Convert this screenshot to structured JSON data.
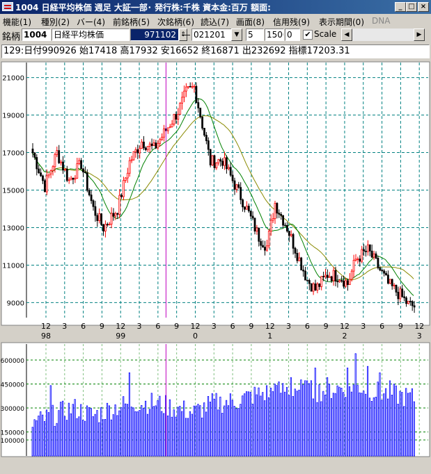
{
  "window": {
    "title": "1004 日経平均株価  週足  大証一部･  発行株:千株  資本金:百万  額面:",
    "btn_min": "_",
    "btn_max": "□",
    "btn_close": "×"
  },
  "menu": [
    "機能(1)",
    "種別(2)",
    "バー(4)",
    "前銘柄(5)",
    "次銘柄(6)",
    "読込(7)",
    "画面(8)",
    "信用残(9)",
    "表示期間(0)"
  ],
  "menu_disabled": "DNA",
  "toolbar": {
    "label": "銘柄",
    "code": "1004",
    "name": "日経平均株価",
    "date_from": "971102",
    "dash": "―",
    "date_to": "021201",
    "n1": "5",
    "n2": "1500",
    "n3": "0",
    "scale_label": "Scale",
    "scale_checked": true
  },
  "info": "129:日付990926 始17418 高17932 安16652 終16871 出232692 指標17203.31",
  "chart_data": {
    "type": "candlestick+bar",
    "price_axis": {
      "ticks": [
        21000,
        19000,
        17000,
        15000,
        13000,
        11000,
        9000
      ],
      "range": [
        8200,
        21800
      ]
    },
    "volume_axis": {
      "ticks": [
        600000,
        450000,
        300000,
        150000,
        100000
      ],
      "range": [
        0,
        700000
      ]
    },
    "x_month_labels": [
      "12",
      "3",
      "6",
      "9",
      "12",
      "3",
      "6",
      "9",
      "12",
      "3",
      "6",
      "9",
      "12",
      "3",
      "6",
      "9",
      "12",
      "3",
      "6",
      "9",
      "12"
    ],
    "x_year_labels": [
      "98",
      "99",
      "0",
      "1",
      "2",
      "3"
    ],
    "price_anchors": [
      [
        0,
        17000
      ],
      [
        6,
        15200
      ],
      [
        12,
        17000
      ],
      [
        18,
        15500
      ],
      [
        24,
        16400
      ],
      [
        30,
        14000
      ],
      [
        35,
        13000
      ],
      [
        42,
        14000
      ],
      [
        48,
        16500
      ],
      [
        54,
        17600
      ],
      [
        60,
        17200
      ],
      [
        66,
        18200
      ],
      [
        72,
        19200
      ],
      [
        76,
        20200
      ],
      [
        80,
        20500
      ],
      [
        84,
        18500
      ],
      [
        88,
        16500
      ],
      [
        94,
        16600
      ],
      [
        100,
        15300
      ],
      [
        106,
        14000
      ],
      [
        112,
        12500
      ],
      [
        116,
        12000
      ],
      [
        120,
        14300
      ],
      [
        126,
        13000
      ],
      [
        132,
        11300
      ],
      [
        136,
        10200
      ],
      [
        140,
        9700
      ],
      [
        146,
        10500
      ],
      [
        152,
        10400
      ],
      [
        156,
        10000
      ],
      [
        160,
        11300
      ],
      [
        166,
        11800
      ],
      [
        170,
        11100
      ],
      [
        176,
        10000
      ],
      [
        182,
        9400
      ],
      [
        186,
        8900
      ],
      [
        189,
        8800
      ]
    ],
    "volume_anchors": [
      [
        0,
        200000
      ],
      [
        10,
        250000
      ],
      [
        20,
        300000
      ],
      [
        30,
        250000
      ],
      [
        40,
        300000
      ],
      [
        50,
        330000
      ],
      [
        60,
        330000
      ],
      [
        70,
        300000
      ],
      [
        80,
        270000
      ],
      [
        90,
        330000
      ],
      [
        100,
        340000
      ],
      [
        110,
        380000
      ],
      [
        120,
        400000
      ],
      [
        130,
        420000
      ],
      [
        140,
        400000
      ],
      [
        150,
        420000
      ],
      [
        160,
        440000
      ],
      [
        170,
        400000
      ],
      [
        180,
        380000
      ],
      [
        189,
        360000
      ]
    ],
    "volume_spikes": [
      [
        9,
        440000
      ],
      [
        48,
        520000
      ],
      [
        120,
        450000
      ],
      [
        128,
        490000
      ],
      [
        136,
        470000
      ],
      [
        140,
        550000
      ],
      [
        146,
        490000
      ],
      [
        156,
        550000
      ],
      [
        160,
        640000
      ],
      [
        166,
        560000
      ],
      [
        172,
        520000
      ],
      [
        177,
        470000
      ]
    ],
    "colors": {
      "up": "#ff0000",
      "down": "#000000",
      "ma_short": "#008000",
      "ma_long": "#8a8a00",
      "volume": "#0000ff",
      "grid": "#008080",
      "volume_grid": "#008000",
      "cursor": "#c000c0"
    }
  }
}
